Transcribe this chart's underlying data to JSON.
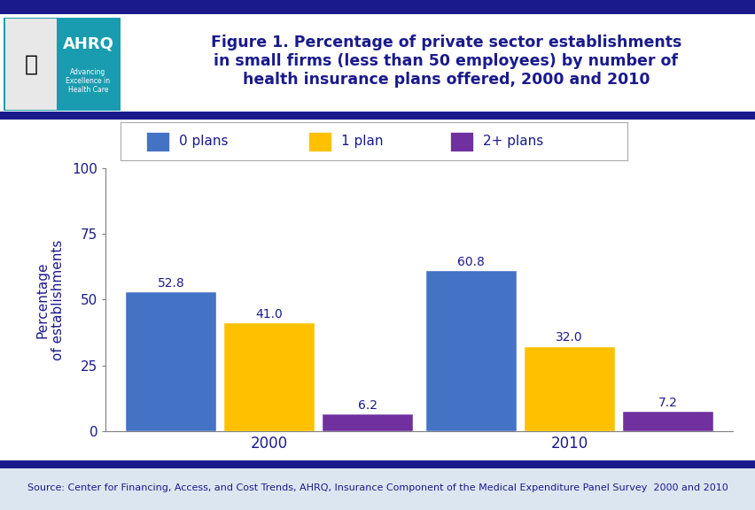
{
  "title_line1": "Figure 1. Percentage of private sector establishments",
  "title_line2": "in small firms (less than 50 employees) by number of",
  "title_line3": "health insurance plans offered, 2000 and 2010",
  "title_color": "#1a1a8c",
  "years": [
    "2000",
    "2010"
  ],
  "categories": [
    "0 plans",
    "1 plan",
    "2+ plans"
  ],
  "values": {
    "2000": [
      52.8,
      41.0,
      6.2
    ],
    "2010": [
      60.8,
      32.0,
      7.2
    ]
  },
  "bar_colors": [
    "#4472c4",
    "#ffc000",
    "#7030a0"
  ],
  "ylabel": "Percentage\nof establishments",
  "ylim": [
    0,
    100
  ],
  "yticks": [
    0,
    25,
    50,
    75,
    100
  ],
  "label_color": "#1a1a8c",
  "label_fontsize": 10,
  "axis_color": "#808080",
  "background_color": "#ffffff",
  "border_color": "#1a1a8c",
  "source_text": "Source: Center for Financing, Access, and Cost Trends, AHRQ, Insurance Component of the Medical Expenditure Panel Survey  2000 and 2010",
  "source_fontsize": 8.0,
  "source_color": "#1a1a8c",
  "footer_bg": "#dce6f1",
  "bar_width": 0.18,
  "group_positions": [
    0.3,
    0.85
  ],
  "xlim": [
    0.0,
    1.15
  ]
}
